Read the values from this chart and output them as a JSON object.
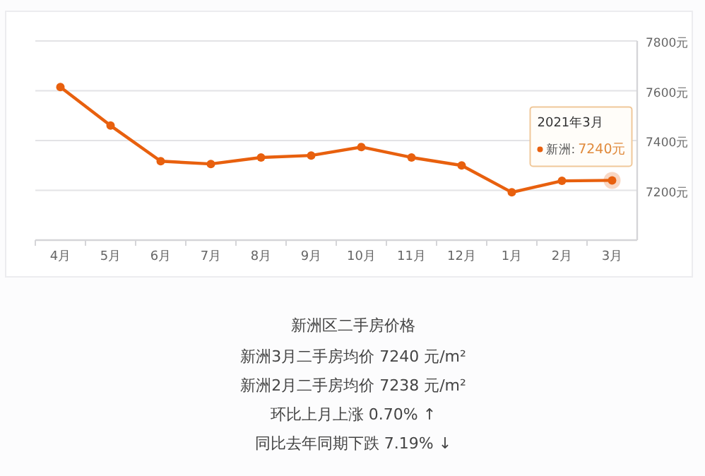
{
  "chart_data": {
    "type": "line",
    "title": "新洲区二手房价格",
    "categories": [
      "4月",
      "5月",
      "6月",
      "7月",
      "8月",
      "9月",
      "10月",
      "11月",
      "12月",
      "1月",
      "2月",
      "3月"
    ],
    "series": [
      {
        "name": "新洲:",
        "color": "#e8600e",
        "values": [
          7615,
          7460,
          7317,
          7306,
          7332,
          7340,
          7374,
          7332,
          7300,
          7192,
          7238,
          7240
        ],
        "value_labels": [
          null,
          null,
          null,
          null,
          null,
          null,
          null,
          null,
          null,
          null,
          null,
          "7240元"
        ]
      }
    ],
    "ylim": [
      7000,
      7800
    ],
    "yticks": [
      {
        "value": 7200,
        "label": "7200元"
      },
      {
        "value": 7400,
        "label": "7400元"
      },
      {
        "value": 7600,
        "label": "7600元"
      },
      {
        "value": 7800,
        "label": "7800元"
      }
    ],
    "grid": "y",
    "marker": "circle",
    "line_style": "solid",
    "legend": "right",
    "annotations": [
      "2021年3月",
      "新洲3月二手房均价 7240 元/m²",
      "新洲2月二手房均价 7238 元/m²",
      "环比上月上涨 0.70% ↑",
      "同比去年同期下跌 7.19% ↓"
    ]
  }
}
